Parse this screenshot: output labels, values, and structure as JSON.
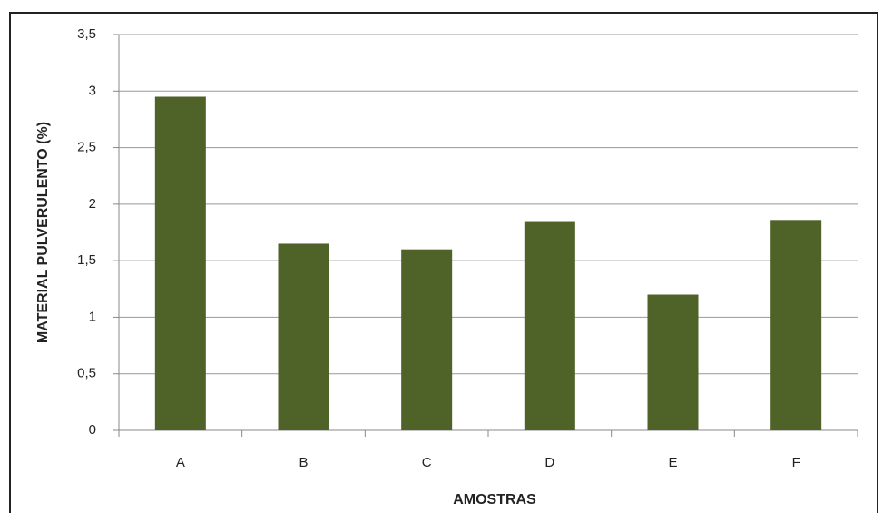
{
  "chart_data": {
    "type": "bar",
    "categories": [
      "A",
      "B",
      "C",
      "D",
      "E",
      "F"
    ],
    "values": [
      2.95,
      1.65,
      1.6,
      1.85,
      1.2,
      1.86
    ],
    "color": "#4f6228",
    "xlabel": "AMOSTRAS",
    "ylabel": "MATERIAL PULVERULENTO (%)",
    "ylim": [
      0,
      3.5
    ],
    "yticks": [
      0,
      {
        "value": 0.5,
        "label": "0,5"
      },
      1,
      {
        "value": 1.5,
        "label": "1,5"
      },
      2,
      {
        "value": 2.5,
        "label": "2,5"
      },
      3,
      {
        "value": 3.5,
        "label": "3,5"
      }
    ],
    "grid": true
  }
}
